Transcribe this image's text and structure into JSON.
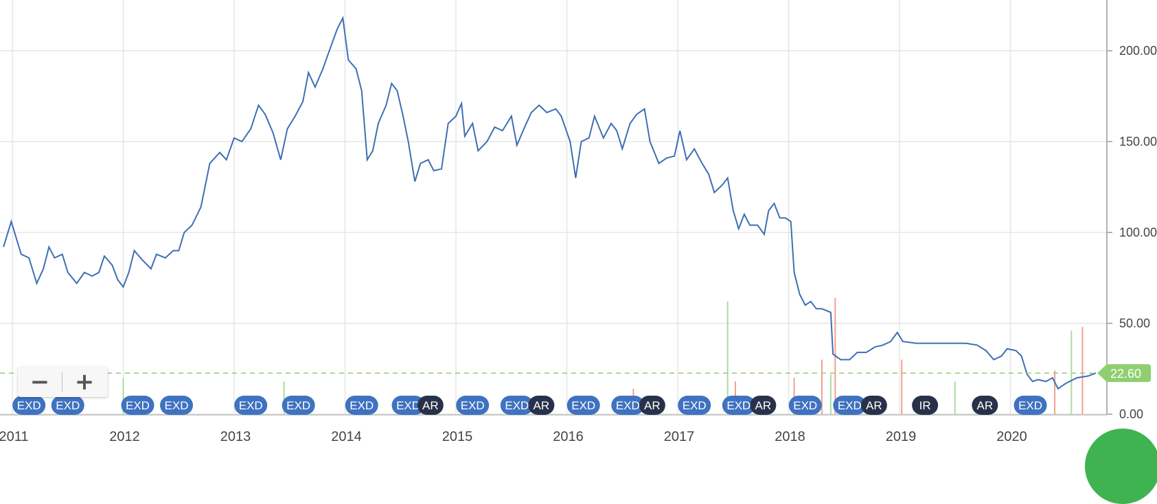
{
  "chart_data": {
    "type": "line",
    "y_axis": {
      "min": 0,
      "max": 220,
      "ticks": [
        "0.00",
        "50.00",
        "100.00",
        "150.00",
        "200.00"
      ],
      "position": "right"
    },
    "x_axis": {
      "start": 2010.97,
      "end": 2020.95,
      "ticks": [
        "2011",
        "2012",
        "2013",
        "2014",
        "2015",
        "2016",
        "2017",
        "2018",
        "2019",
        "2020"
      ]
    },
    "grid": true,
    "last_value": "22.60",
    "series": [
      {
        "color": "#3d6eb4",
        "points": [
          [
            2010.92,
            92
          ],
          [
            2010.99,
            106
          ],
          [
            2011.03,
            98
          ],
          [
            2011.08,
            88
          ],
          [
            2011.15,
            86
          ],
          [
            2011.22,
            72
          ],
          [
            2011.28,
            80
          ],
          [
            2011.33,
            92
          ],
          [
            2011.38,
            86
          ],
          [
            2011.45,
            88
          ],
          [
            2011.5,
            78
          ],
          [
            2011.58,
            72
          ],
          [
            2011.65,
            78
          ],
          [
            2011.72,
            76
          ],
          [
            2011.78,
            78
          ],
          [
            2011.83,
            87
          ],
          [
            2011.9,
            82
          ],
          [
            2011.95,
            74
          ],
          [
            2012.0,
            70
          ],
          [
            2012.05,
            78
          ],
          [
            2012.1,
            90
          ],
          [
            2012.17,
            85
          ],
          [
            2012.25,
            80
          ],
          [
            2012.3,
            88
          ],
          [
            2012.38,
            86
          ],
          [
            2012.45,
            90
          ],
          [
            2012.5,
            90
          ],
          [
            2012.55,
            100
          ],
          [
            2012.62,
            104
          ],
          [
            2012.7,
            114
          ],
          [
            2012.78,
            138
          ],
          [
            2012.87,
            144
          ],
          [
            2012.93,
            140
          ],
          [
            2013.0,
            152
          ],
          [
            2013.07,
            150
          ],
          [
            2013.15,
            157
          ],
          [
            2013.22,
            170
          ],
          [
            2013.28,
            165
          ],
          [
            2013.35,
            155
          ],
          [
            2013.42,
            140
          ],
          [
            2013.48,
            157
          ],
          [
            2013.55,
            164
          ],
          [
            2013.62,
            172
          ],
          [
            2013.67,
            188
          ],
          [
            2013.73,
            180
          ],
          [
            2013.8,
            190
          ],
          [
            2013.87,
            202
          ],
          [
            2013.93,
            212
          ],
          [
            2013.98,
            218
          ],
          [
            2014.03,
            195
          ],
          [
            2014.1,
            190
          ],
          [
            2014.15,
            178
          ],
          [
            2014.2,
            140
          ],
          [
            2014.25,
            145
          ],
          [
            2014.3,
            160
          ],
          [
            2014.37,
            170
          ],
          [
            2014.42,
            182
          ],
          [
            2014.47,
            178
          ],
          [
            2014.52,
            165
          ],
          [
            2014.57,
            150
          ],
          [
            2014.63,
            128
          ],
          [
            2014.68,
            138
          ],
          [
            2014.75,
            140
          ],
          [
            2014.8,
            134
          ],
          [
            2014.87,
            135
          ],
          [
            2014.93,
            160
          ],
          [
            2015.0,
            164
          ],
          [
            2015.05,
            171
          ],
          [
            2015.08,
            153
          ],
          [
            2015.15,
            160
          ],
          [
            2015.2,
            145
          ],
          [
            2015.28,
            150
          ],
          [
            2015.35,
            158
          ],
          [
            2015.42,
            156
          ],
          [
            2015.5,
            164
          ],
          [
            2015.55,
            148
          ],
          [
            2015.62,
            158
          ],
          [
            2015.68,
            166
          ],
          [
            2015.75,
            170
          ],
          [
            2015.82,
            166
          ],
          [
            2015.9,
            168
          ],
          [
            2015.95,
            164
          ],
          [
            2016.03,
            150
          ],
          [
            2016.08,
            130
          ],
          [
            2016.13,
            150
          ],
          [
            2016.2,
            152
          ],
          [
            2016.25,
            164
          ],
          [
            2016.33,
            152
          ],
          [
            2016.4,
            160
          ],
          [
            2016.45,
            156
          ],
          [
            2016.5,
            146
          ],
          [
            2016.57,
            160
          ],
          [
            2016.63,
            165
          ],
          [
            2016.7,
            168
          ],
          [
            2016.75,
            150
          ],
          [
            2016.83,
            138
          ],
          [
            2016.9,
            141
          ],
          [
            2016.97,
            142
          ],
          [
            2017.02,
            156
          ],
          [
            2017.08,
            140
          ],
          [
            2017.15,
            146
          ],
          [
            2017.22,
            138
          ],
          [
            2017.28,
            132
          ],
          [
            2017.33,
            122
          ],
          [
            2017.4,
            126
          ],
          [
            2017.45,
            130
          ],
          [
            2017.5,
            112
          ],
          [
            2017.55,
            102
          ],
          [
            2017.6,
            110
          ],
          [
            2017.65,
            104
          ],
          [
            2017.72,
            104
          ],
          [
            2017.78,
            99
          ],
          [
            2017.82,
            112
          ],
          [
            2017.87,
            116
          ],
          [
            2017.92,
            108
          ],
          [
            2017.97,
            108
          ],
          [
            2018.02,
            106
          ],
          [
            2018.05,
            78
          ],
          [
            2018.1,
            66
          ],
          [
            2018.15,
            60
          ],
          [
            2018.2,
            62
          ],
          [
            2018.25,
            58
          ],
          [
            2018.3,
            58
          ],
          [
            2018.38,
            56
          ],
          [
            2018.4,
            33
          ],
          [
            2018.47,
            30
          ],
          [
            2018.55,
            30
          ],
          [
            2018.62,
            34
          ],
          [
            2018.7,
            34
          ],
          [
            2018.78,
            37
          ],
          [
            2018.85,
            38
          ],
          [
            2018.92,
            40
          ],
          [
            2018.98,
            45
          ],
          [
            2019.03,
            40
          ],
          [
            2019.15,
            39
          ],
          [
            2019.3,
            39
          ],
          [
            2019.45,
            39
          ],
          [
            2019.6,
            39
          ],
          [
            2019.7,
            38
          ],
          [
            2019.78,
            35
          ],
          [
            2019.85,
            30
          ],
          [
            2019.92,
            32
          ],
          [
            2019.97,
            36
          ],
          [
            2020.05,
            35
          ],
          [
            2020.1,
            32
          ],
          [
            2020.15,
            22
          ],
          [
            2020.2,
            18
          ],
          [
            2020.25,
            19
          ],
          [
            2020.32,
            18
          ],
          [
            2020.38,
            20
          ],
          [
            2020.43,
            14
          ],
          [
            2020.5,
            17
          ],
          [
            2020.6,
            20
          ],
          [
            2020.7,
            21
          ],
          [
            2020.77,
            22.6
          ]
        ]
      }
    ],
    "events": [
      {
        "label": "EXD",
        "x": 2011.15,
        "type": "EXD"
      },
      {
        "label": "EXD",
        "x": 2011.5,
        "type": "EXD"
      },
      {
        "label": "EXD",
        "x": 2012.13,
        "type": "EXD"
      },
      {
        "label": "EXD",
        "x": 2012.48,
        "type": "EXD"
      },
      {
        "label": "EXD",
        "x": 2013.15,
        "type": "EXD"
      },
      {
        "label": "EXD",
        "x": 2013.58,
        "type": "EXD"
      },
      {
        "label": "EXD",
        "x": 2014.15,
        "type": "EXD"
      },
      {
        "label": "EXD",
        "x": 2014.57,
        "type": "EXD"
      },
      {
        "label": "AR",
        "x": 2014.77,
        "type": "AR"
      },
      {
        "label": "EXD",
        "x": 2015.15,
        "type": "EXD"
      },
      {
        "label": "EXD",
        "x": 2015.55,
        "type": "EXD"
      },
      {
        "label": "AR",
        "x": 2015.77,
        "type": "AR"
      },
      {
        "label": "EXD",
        "x": 2016.15,
        "type": "EXD"
      },
      {
        "label": "EXD",
        "x": 2016.55,
        "type": "EXD"
      },
      {
        "label": "AR",
        "x": 2016.77,
        "type": "AR"
      },
      {
        "label": "EXD",
        "x": 2017.15,
        "type": "EXD"
      },
      {
        "label": "EXD",
        "x": 2017.55,
        "type": "EXD"
      },
      {
        "label": "AR",
        "x": 2017.77,
        "type": "AR"
      },
      {
        "label": "EXD",
        "x": 2018.15,
        "type": "EXD"
      },
      {
        "label": "EXD",
        "x": 2018.55,
        "type": "EXD"
      },
      {
        "label": "AR",
        "x": 2018.77,
        "type": "AR"
      },
      {
        "label": "IR",
        "x": 2019.23,
        "type": "IR"
      },
      {
        "label": "AR",
        "x": 2019.77,
        "type": "AR"
      },
      {
        "label": "EXD",
        "x": 2020.18,
        "type": "EXD"
      }
    ],
    "volume": [
      {
        "x": 2017.45,
        "v": 62,
        "color": "#a8dca0"
      },
      {
        "x": 2018.3,
        "v": 30,
        "color": "#f0a090"
      },
      {
        "x": 2018.42,
        "v": 64,
        "color": "#f0a090"
      },
      {
        "x": 2018.38,
        "v": 22,
        "color": "#a8dca0"
      },
      {
        "x": 2019.02,
        "v": 30,
        "color": "#f0a090"
      },
      {
        "x": 2020.55,
        "v": 46,
        "color": "#a8dca0"
      },
      {
        "x": 2020.65,
        "v": 48,
        "color": "#f0a090"
      },
      {
        "x": 2017.52,
        "v": 18,
        "color": "#f0a090"
      },
      {
        "x": 2018.05,
        "v": 20,
        "color": "#f0a090"
      },
      {
        "x": 2019.5,
        "v": 18,
        "color": "#a8dca0"
      },
      {
        "x": 2020.4,
        "v": 24,
        "color": "#f0a090"
      },
      {
        "x": 2012.0,
        "v": 20,
        "color": "#a8dca0"
      },
      {
        "x": 2013.45,
        "v": 18,
        "color": "#a8dca0"
      },
      {
        "x": 2016.6,
        "v": 14,
        "color": "#f0a090"
      }
    ]
  },
  "colors": {
    "line": "#3d6eb4",
    "exd_badge": "#3f72c0",
    "ar_badge": "#27324a",
    "last_value_tag": "#8fcf6f",
    "grid": "#e6e6e6"
  },
  "zoom": {
    "minus_icon": "minus-icon",
    "plus_icon": "plus-icon"
  }
}
